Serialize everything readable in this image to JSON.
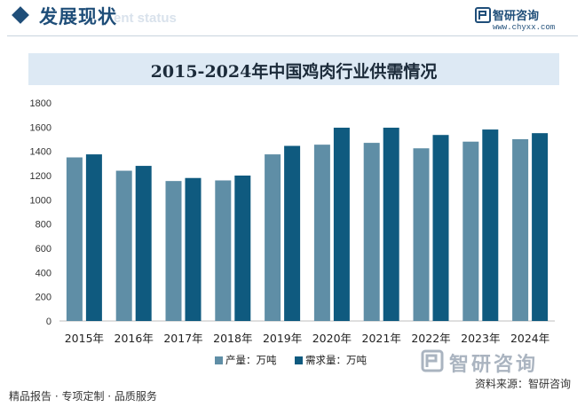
{
  "header": {
    "section_title": "发展现状",
    "section_subtitle": "ent status",
    "brand_name": "智研咨询",
    "brand_url": "www.chyxx.com"
  },
  "chart_data": {
    "type": "bar",
    "title": "2015-2024年中国鸡肉行业供需情况",
    "categories": [
      "2015年",
      "2016年",
      "2017年",
      "2018年",
      "2019年",
      "2020年",
      "2021年",
      "2022年",
      "2023年",
      "2024年"
    ],
    "series": [
      {
        "name": "产量：万吨",
        "color": "#5f8ea6",
        "values": [
          1350,
          1240,
          1155,
          1160,
          1375,
          1455,
          1470,
          1425,
          1480,
          1500
        ]
      },
      {
        "name": "需求量：万吨",
        "color": "#0f5a7f",
        "values": [
          1375,
          1280,
          1180,
          1200,
          1445,
          1595,
          1595,
          1535,
          1580,
          1550
        ]
      }
    ],
    "yticks": [
      0,
      200,
      400,
      600,
      800,
      1000,
      1200,
      1400,
      1600,
      1800
    ],
    "ylim": [
      0,
      1800
    ],
    "xlabel": "",
    "ylabel": "",
    "grid": false,
    "legend": "bottom-center"
  },
  "watermark": {
    "text": "智研咨询"
  },
  "footer": {
    "left_text": "精品报告 · 专项定制 · 品质服务",
    "source_text": "资料来源：智研咨询"
  }
}
